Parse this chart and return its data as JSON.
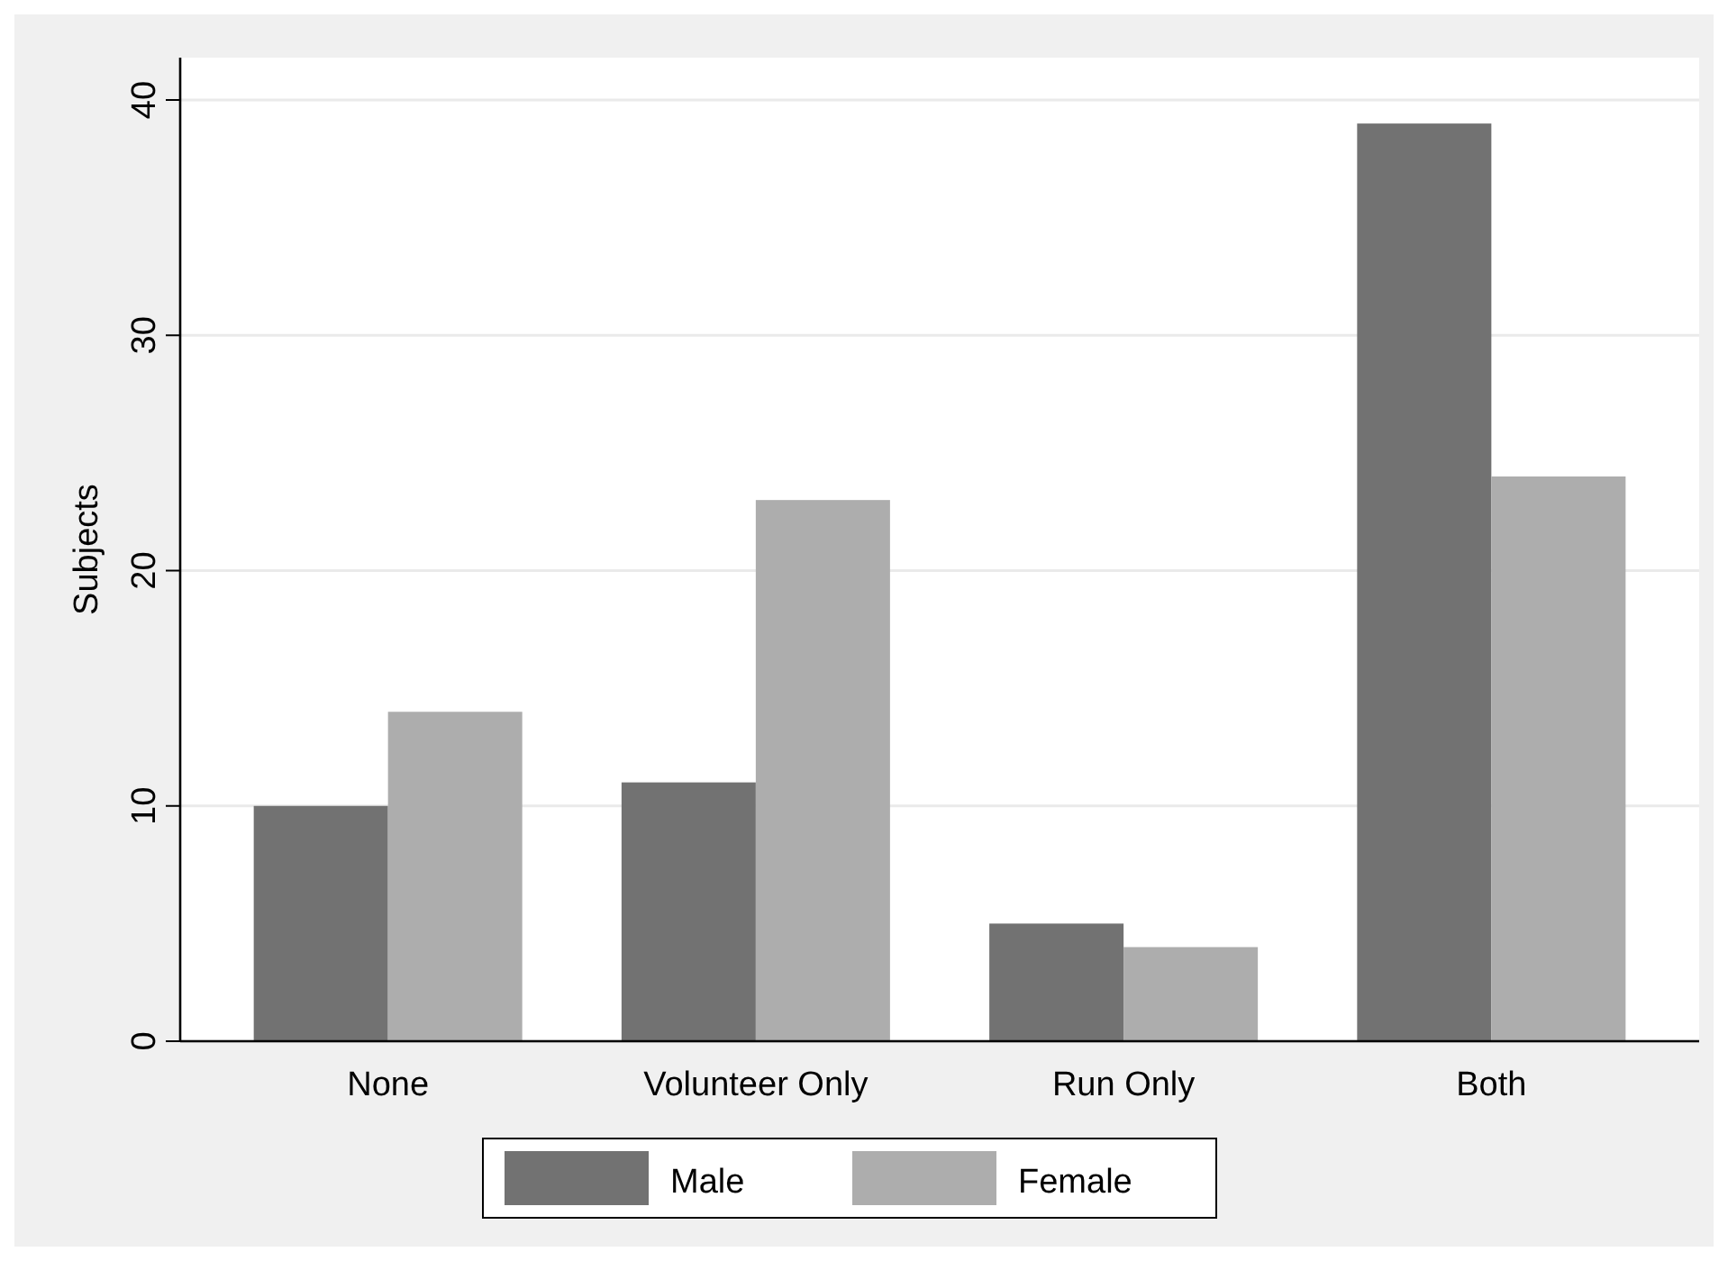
{
  "chart_data": {
    "type": "bar",
    "ylabel": "Subjects",
    "categories": [
      "None",
      "Volunteer Only",
      "Run Only",
      "Both"
    ],
    "series": [
      {
        "name": "Male",
        "color": "#727272",
        "values": [
          10,
          11,
          5,
          39
        ]
      },
      {
        "name": "Female",
        "color": "#adadad",
        "values": [
          14,
          23,
          4,
          24
        ]
      }
    ],
    "ylim": [
      0,
      41.8
    ],
    "yticks": [
      0,
      10,
      20,
      30,
      40
    ],
    "grid": "y",
    "legend": "bottom"
  }
}
